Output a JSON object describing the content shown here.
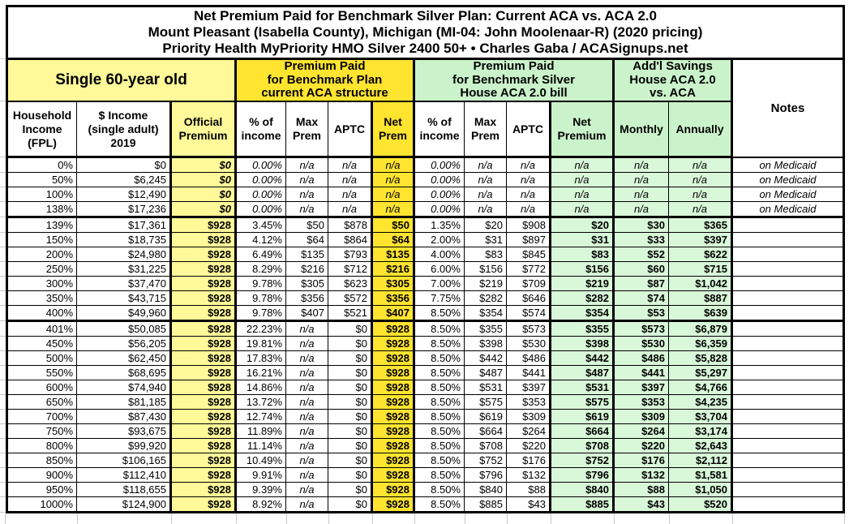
{
  "title": {
    "line1": "Net Premium Paid for Benchmark Silver Plan: Current ACA vs. ACA 2.0",
    "line2": "Mount Pleasant (Isabella County), Michigan (MI-04: John Moolenaar-R) (2020 pricing)",
    "line3": "Priority Health MyPriority HMO Silver 2400 50+ • Charles Gaba / ACASignups.net"
  },
  "sections": {
    "demographic": "Single 60-year old",
    "current_aca": "Premium Paid\nfor Benchmark Plan\ncurrent ACA structure",
    "house_aca20": "Premium Paid\nfor Benchmark Silver\nHouse ACA 2.0 bill",
    "savings": "Add'l Savings\nHouse ACA 2.0\nvs. ACA",
    "notes": "Notes"
  },
  "columns": [
    "Household\nIncome\n(FPL)",
    "$ Income\n(single adult)\n2019",
    "Official\nPremium",
    "% of\nincome",
    "Max\nPrem",
    "APTC",
    "Net\nPrem",
    "% of\nincome",
    "Max\nPrem",
    "APTC",
    "Net\nPremium",
    "Monthly",
    "Annually"
  ],
  "rows": [
    [
      "0%",
      "$0",
      "$0",
      "0.00%",
      "n/a",
      "n/a",
      "n/a",
      "0.00%",
      "n/a",
      "n/a",
      "n/a",
      "n/a",
      "n/a",
      "on Medicaid"
    ],
    [
      "50%",
      "$6,245",
      "$0",
      "0.00%",
      "n/a",
      "n/a",
      "n/a",
      "0.00%",
      "n/a",
      "n/a",
      "n/a",
      "n/a",
      "n/a",
      "on Medicaid"
    ],
    [
      "100%",
      "$12,490",
      "$0",
      "0.00%",
      "n/a",
      "n/a",
      "n/a",
      "0.00%",
      "n/a",
      "n/a",
      "n/a",
      "n/a",
      "n/a",
      "on Medicaid"
    ],
    [
      "138%",
      "$17,236",
      "$0",
      "0.00%",
      "n/a",
      "n/a",
      "n/a",
      "0.00%",
      "n/a",
      "n/a",
      "n/a",
      "n/a",
      "n/a",
      "on Medicaid"
    ],
    [
      "139%",
      "$17,361",
      "$928",
      "3.45%",
      "$50",
      "$878",
      "$50",
      "1.35%",
      "$20",
      "$908",
      "$20",
      "$30",
      "$365",
      ""
    ],
    [
      "150%",
      "$18,735",
      "$928",
      "4.12%",
      "$64",
      "$864",
      "$64",
      "2.00%",
      "$31",
      "$897",
      "$31",
      "$33",
      "$397",
      ""
    ],
    [
      "200%",
      "$24,980",
      "$928",
      "6.49%",
      "$135",
      "$793",
      "$135",
      "4.00%",
      "$83",
      "$845",
      "$83",
      "$52",
      "$622",
      ""
    ],
    [
      "250%",
      "$31,225",
      "$928",
      "8.29%",
      "$216",
      "$712",
      "$216",
      "6.00%",
      "$156",
      "$772",
      "$156",
      "$60",
      "$715",
      ""
    ],
    [
      "300%",
      "$37,470",
      "$928",
      "9.78%",
      "$305",
      "$623",
      "$305",
      "7.00%",
      "$219",
      "$709",
      "$219",
      "$87",
      "$1,042",
      ""
    ],
    [
      "350%",
      "$43,715",
      "$928",
      "9.78%",
      "$356",
      "$572",
      "$356",
      "7.75%",
      "$282",
      "$646",
      "$282",
      "$74",
      "$887",
      ""
    ],
    [
      "400%",
      "$49,960",
      "$928",
      "9.78%",
      "$407",
      "$521",
      "$407",
      "8.50%",
      "$354",
      "$574",
      "$354",
      "$53",
      "$639",
      ""
    ],
    [
      "401%",
      "$50,085",
      "$928",
      "22.23%",
      "n/a",
      "$0",
      "$928",
      "8.50%",
      "$355",
      "$573",
      "$355",
      "$573",
      "$6,879",
      ""
    ],
    [
      "450%",
      "$56,205",
      "$928",
      "19.81%",
      "n/a",
      "$0",
      "$928",
      "8.50%",
      "$398",
      "$530",
      "$398",
      "$530",
      "$6,359",
      ""
    ],
    [
      "500%",
      "$62,450",
      "$928",
      "17.83%",
      "n/a",
      "$0",
      "$928",
      "8.50%",
      "$442",
      "$486",
      "$442",
      "$486",
      "$5,828",
      ""
    ],
    [
      "550%",
      "$68,695",
      "$928",
      "16.21%",
      "n/a",
      "$0",
      "$928",
      "8.50%",
      "$487",
      "$441",
      "$487",
      "$441",
      "$5,297",
      ""
    ],
    [
      "600%",
      "$74,940",
      "$928",
      "14.86%",
      "n/a",
      "$0",
      "$928",
      "8.50%",
      "$531",
      "$397",
      "$531",
      "$397",
      "$4,766",
      ""
    ],
    [
      "650%",
      "$81,185",
      "$928",
      "13.72%",
      "n/a",
      "$0",
      "$928",
      "8.50%",
      "$575",
      "$353",
      "$575",
      "$353",
      "$4,235",
      ""
    ],
    [
      "700%",
      "$87,430",
      "$928",
      "12.74%",
      "n/a",
      "$0",
      "$928",
      "8.50%",
      "$619",
      "$309",
      "$619",
      "$309",
      "$3,704",
      ""
    ],
    [
      "750%",
      "$93,675",
      "$928",
      "11.89%",
      "n/a",
      "$0",
      "$928",
      "8.50%",
      "$664",
      "$264",
      "$664",
      "$264",
      "$3,174",
      ""
    ],
    [
      "800%",
      "$99,920",
      "$928",
      "11.14%",
      "n/a",
      "$0",
      "$928",
      "8.50%",
      "$708",
      "$220",
      "$708",
      "$220",
      "$2,643",
      ""
    ],
    [
      "850%",
      "$106,165",
      "$928",
      "10.49%",
      "n/a",
      "$0",
      "$928",
      "8.50%",
      "$752",
      "$176",
      "$752",
      "$176",
      "$2,112",
      ""
    ],
    [
      "900%",
      "$112,410",
      "$928",
      "9.91%",
      "n/a",
      "$0",
      "$928",
      "8.50%",
      "$796",
      "$132",
      "$796",
      "$132",
      "$1,581",
      ""
    ],
    [
      "950%",
      "$118,655",
      "$928",
      "9.39%",
      "n/a",
      "$0",
      "$928",
      "8.50%",
      "$840",
      "$88",
      "$840",
      "$88",
      "$1,050",
      ""
    ],
    [
      "1000%",
      "$124,900",
      "$928",
      "8.92%",
      "n/a",
      "$0",
      "$928",
      "8.50%",
      "$885",
      "$43",
      "$885",
      "$43",
      "$520",
      ""
    ]
  ],
  "colors": {
    "pale_yellow": "#FFF999",
    "bright_yellow": "#FFE430",
    "header_green": "#CBF3CB",
    "data_green": "#D9F7D9",
    "gridline": "#C9C9C9"
  }
}
